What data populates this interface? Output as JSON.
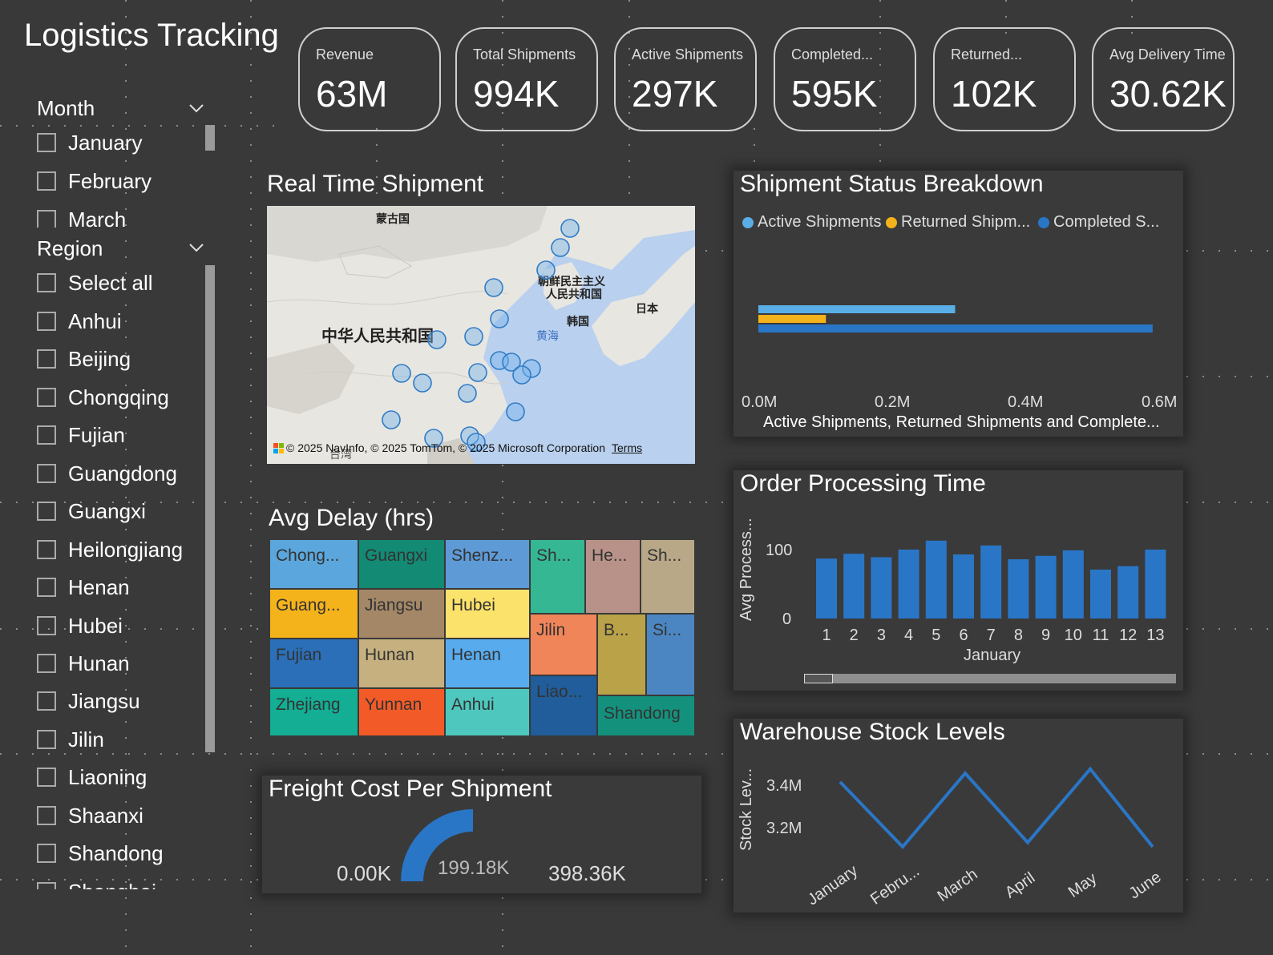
{
  "title": "Logistics Tracking",
  "kpis": [
    {
      "label": "Revenue",
      "value": "63M"
    },
    {
      "label": "Total Shipments",
      "value": "994K"
    },
    {
      "label": "Active Shipments",
      "value": "297K"
    },
    {
      "label": "Completed...",
      "value": "595K"
    },
    {
      "label": "Returned...",
      "value": "102K"
    },
    {
      "label": "Avg Delivery Time",
      "value": "30.62K"
    }
  ],
  "month_slicer": {
    "header": "Month",
    "items": [
      "January",
      "February",
      "March"
    ]
  },
  "region_slicer": {
    "header": "Region",
    "items": [
      "Select all",
      "Anhui",
      "Beijing",
      "Chongqing",
      "Fujian",
      "Guangdong",
      "Guangxi",
      "Heilongjiang",
      "Henan",
      "Hubei",
      "Hunan",
      "Jiangsu",
      "Jilin",
      "Liaoning",
      "Shaanxi",
      "Shandong",
      "Shanghai"
    ]
  },
  "map": {
    "title": "Real Time Shipment",
    "labels": {
      "mongolia": "蒙古国",
      "china": "中华人民共和国",
      "dprk1": "朝鲜民主主义",
      "dprk2": "人民共和国",
      "korea": "韩国",
      "japan": "日本",
      "yellow_sea": "黄海",
      "taiwan": "台湾"
    },
    "copyright": "© 2025 NavInfo, © 2025 TomTom, © 2025 Microsoft Corporation",
    "terms": "Terms"
  },
  "treemap": {
    "title": "Avg Delay (hrs)",
    "tiles": [
      {
        "label": "Chong...",
        "color": "#5ba7dd"
      },
      {
        "label": "Guangxi",
        "color": "#138a73"
      },
      {
        "label": "Shenz...",
        "color": "#5e9ad6"
      },
      {
        "label": "Sh...",
        "color": "#35b793"
      },
      {
        "label": "He...",
        "color": "#b89289"
      },
      {
        "label": "Sh...",
        "color": "#b9a888"
      },
      {
        "label": "Guang...",
        "color": "#f5b31b"
      },
      {
        "label": "Jiangsu",
        "color": "#a38767"
      },
      {
        "label": "Hubei",
        "color": "#fbe26a"
      },
      {
        "label": "Jilin",
        "color": "#f08559"
      },
      {
        "label": "B...",
        "color": "#b9a248"
      },
      {
        "label": "Si...",
        "color": "#4c86c2"
      },
      {
        "label": "Fujian",
        "color": "#2a6fb7"
      },
      {
        "label": "Hunan",
        "color": "#c6b07f"
      },
      {
        "label": "Henan",
        "color": "#58acee"
      },
      {
        "label": "Liao...",
        "color": "#205d9a"
      },
      {
        "label": "Zhejiang",
        "color": "#13ae94"
      },
      {
        "label": "Yunnan",
        "color": "#f25a28"
      },
      {
        "label": "Anhui",
        "color": "#4ec8be"
      },
      {
        "label": "Shandong",
        "color": "#14917d"
      }
    ]
  },
  "gauge": {
    "title": "Freight Cost Per Shipment",
    "min_label": "0.00K",
    "value_label": "199.18K",
    "max_label": "398.36K",
    "fraction": 0.5
  },
  "status_chart": {
    "title": "Shipment Status Breakdown",
    "legend": [
      {
        "label": "Active Shipments",
        "color": "#5aaee6"
      },
      {
        "label": "Returned Shipm...",
        "color": "#f5b31b"
      },
      {
        "label": "Completed S...",
        "color": "#2a76c6"
      }
    ],
    "xlabel": "Active Shipments, Returned Shipments and Complete...",
    "ticks": [
      "0.0M",
      "0.2M",
      "0.4M",
      "0.6M"
    ]
  },
  "processing_chart": {
    "title": "Order Processing Time",
    "ylabel": "Avg Process...",
    "y_ticks": [
      "100",
      "0"
    ],
    "xlabel": "January",
    "categories": [
      "1",
      "2",
      "3",
      "4",
      "5",
      "6",
      "7",
      "8",
      "9",
      "10",
      "11",
      "12",
      "13"
    ]
  },
  "stock_chart": {
    "title": "Warehouse Stock Levels",
    "ylabel": "Stock Lev...",
    "y_ticks": [
      "3.4M",
      "3.2M"
    ],
    "categories": [
      "January",
      "Febru...",
      "March",
      "April",
      "May",
      "June"
    ]
  },
  "chart_data": [
    {
      "type": "bar",
      "orientation": "horizontal",
      "title": "Shipment Status Breakdown",
      "series": [
        {
          "name": "Active Shipments",
          "values": [
            0.297
          ]
        },
        {
          "name": "Returned Shipments",
          "values": [
            0.102
          ]
        },
        {
          "name": "Completed Shipments",
          "values": [
            0.595
          ]
        }
      ],
      "xlabel": "Active Shipments, Returned Shipments and Complete...",
      "xlim": [
        0,
        0.6
      ],
      "unit": "M",
      "legend": "top"
    },
    {
      "type": "bar",
      "title": "Order Processing Time",
      "categories": [
        "1",
        "2",
        "3",
        "4",
        "5",
        "6",
        "7",
        "8",
        "9",
        "10",
        "11",
        "12",
        "13"
      ],
      "values": [
        87,
        94,
        89,
        100,
        113,
        93,
        106,
        86,
        91,
        99,
        71,
        76,
        100
      ],
      "ylabel": "Avg Process...",
      "xlabel": "January",
      "ylim": [
        0,
        120
      ]
    },
    {
      "type": "line",
      "title": "Warehouse Stock Levels",
      "categories": [
        "January",
        "Febru...",
        "March",
        "April",
        "May",
        "June"
      ],
      "values": [
        3.4,
        3.1,
        3.44,
        3.12,
        3.46,
        3.1
      ],
      "ylabel": "Stock Lev...",
      "ylim": [
        3.05,
        3.5
      ],
      "unit": "M"
    }
  ]
}
